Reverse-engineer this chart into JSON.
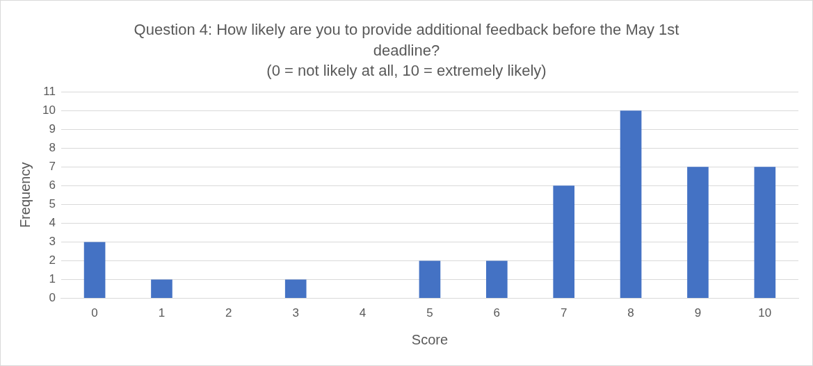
{
  "chart_data": {
    "type": "bar",
    "title": "Question 4: How likely are you to provide additional feedback before the May 1st deadline?",
    "subtitle": "(0 = not likely at all, 10 = extremely likely)",
    "xlabel": "Score",
    "ylabel": "Frequency",
    "categories": [
      "0",
      "1",
      "2",
      "3",
      "4",
      "5",
      "6",
      "7",
      "8",
      "9",
      "10"
    ],
    "values": [
      3,
      1,
      0,
      1,
      0,
      2,
      2,
      6,
      10,
      7,
      7
    ],
    "color": "#4472c4",
    "ylim": [
      0,
      11
    ],
    "yticks": [
      0,
      1,
      2,
      3,
      4,
      5,
      6,
      7,
      8,
      9,
      10,
      11
    ],
    "grid": "y",
    "legend": false
  }
}
